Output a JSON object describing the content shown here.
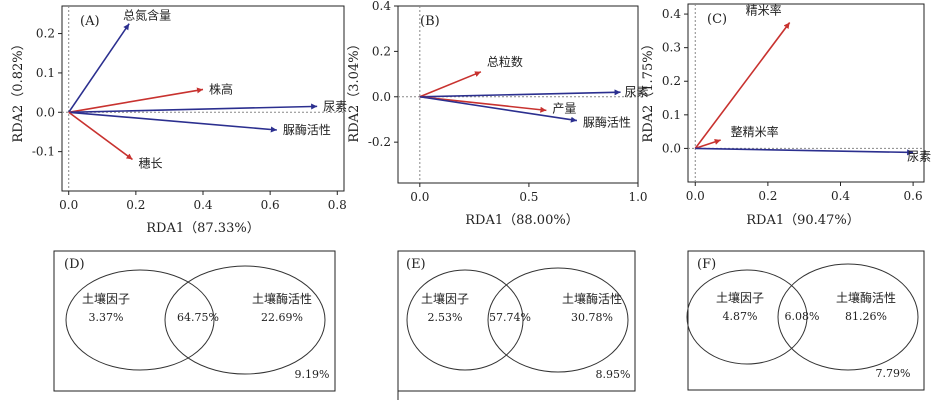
{
  "colors": {
    "blue": "#2b2f8f",
    "red": "#c8322f",
    "axis": "#222222",
    "dashed": "#888888"
  },
  "chart_data": [
    {
      "type": "biplot",
      "panel": "(A)",
      "xlabel": "RDA1（87.33%）",
      "ylabel": "RDA2（0.82%）",
      "xlim": [
        -0.02,
        0.82
      ],
      "ylim": [
        -0.2,
        0.27
      ],
      "xticks": [
        "0.0",
        "0.2",
        "0.4",
        "0.6",
        "0.8"
      ],
      "xtick_values": [
        0,
        0.2,
        0.4,
        0.6,
        0.8
      ],
      "yticks": [
        "0.2",
        "0.1",
        "0.0",
        "-0.1"
      ],
      "ytick_values": [
        0.2,
        0.1,
        0,
        -0.1
      ],
      "vectors": [
        {
          "label": "总氮含量",
          "x": 0.18,
          "y": 0.225,
          "color": "blue"
        },
        {
          "label": "株高",
          "x": 0.4,
          "y": 0.058,
          "color": "red"
        },
        {
          "label": "尿素",
          "x": 0.74,
          "y": 0.015,
          "color": "blue"
        },
        {
          "label": "脲酶活性",
          "x": 0.62,
          "y": -0.045,
          "color": "blue"
        },
        {
          "label": "穗长",
          "x": 0.19,
          "y": -0.12,
          "color": "red"
        }
      ]
    },
    {
      "type": "biplot",
      "panel": "(B)",
      "xlabel": "RDA1（88.00%）",
      "ylabel": "RDA2（3.04%）",
      "xlim": [
        -0.1,
        1.0
      ],
      "ylim": [
        -0.38,
        0.4
      ],
      "xticks": [
        "0.0",
        "0.5",
        "1.0"
      ],
      "xtick_values": [
        0,
        0.5,
        1.0
      ],
      "yticks": [
        "0.4",
        "0.2",
        "0.0",
        "-0.2"
      ],
      "ytick_values": [
        0.4,
        0.2,
        0,
        -0.2
      ],
      "vectors": [
        {
          "label": "总粒数",
          "x": 0.28,
          "y": 0.11,
          "color": "red"
        },
        {
          "label": "尿素",
          "x": 0.92,
          "y": 0.02,
          "color": "blue"
        },
        {
          "label": "产量",
          "x": 0.58,
          "y": -0.06,
          "color": "red"
        },
        {
          "label": "脲酶活性",
          "x": 0.72,
          "y": -0.105,
          "color": "blue"
        }
      ]
    },
    {
      "type": "biplot",
      "panel": "(C)",
      "xlabel": "RDA1（90.47%）",
      "ylabel": "RDA2（1.75%）",
      "xlim": [
        -0.02,
        0.63
      ],
      "ylim": [
        -0.1,
        0.43
      ],
      "xticks": [
        "0.0",
        "0.2",
        "0.4",
        "0.6"
      ],
      "xtick_values": [
        0,
        0.2,
        0.4,
        0.6
      ],
      "yticks": [
        "0.4",
        "0.3",
        "0.2",
        "0.1",
        "0.0"
      ],
      "ytick_values": [
        0.4,
        0.3,
        0.2,
        0.1,
        0
      ],
      "vectors": [
        {
          "label": "精米率",
          "x": 0.26,
          "y": 0.375,
          "color": "red"
        },
        {
          "label": "整精米率",
          "x": 0.07,
          "y": 0.025,
          "color": "red"
        },
        {
          "label": "尿素",
          "x": 0.6,
          "y": -0.012,
          "color": "blue"
        }
      ]
    }
  ],
  "venn": [
    {
      "panel": "(D)",
      "left_label": "土壤因子",
      "left_value": "3.37%",
      "shared_value": "64.75%",
      "right_label": "土壤酶活性",
      "right_value": "22.69%",
      "residual": "9.19%"
    },
    {
      "panel": "(E)",
      "left_label": "土壤因子",
      "left_value": "2.53%",
      "shared_value": "57.74%",
      "right_label": "土壤酶活性",
      "right_value": "30.78%",
      "residual": "8.95%"
    },
    {
      "panel": "(F)",
      "left_label": "土壤因子",
      "left_value": "4.87%",
      "shared_value": "6.08%",
      "right_label": "土壤酶活性",
      "right_value": "81.26%",
      "residual": "7.79%"
    }
  ]
}
